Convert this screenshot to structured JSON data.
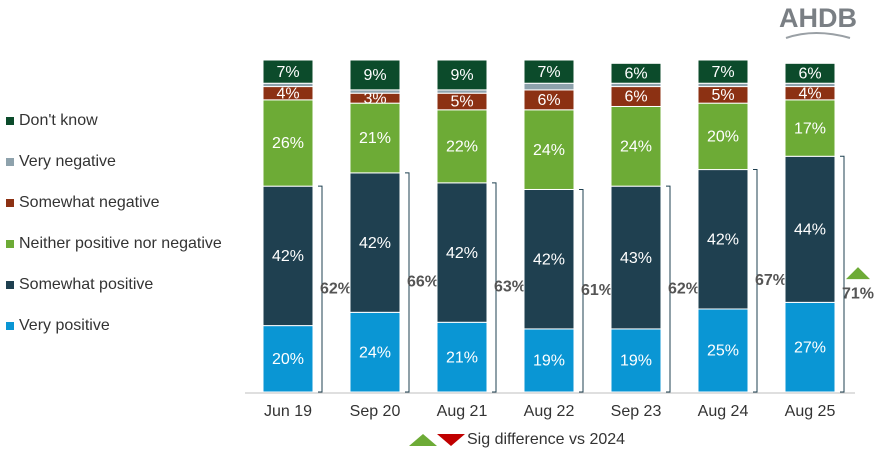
{
  "chart_data": {
    "type": "bar",
    "stacked": true,
    "logo": "AHDB",
    "categories": [
      "Jun 19",
      "Sep 20",
      "Aug 21",
      "Aug 22",
      "Sep 23",
      "Aug 24",
      "Aug 25"
    ],
    "series": [
      {
        "name": "Very positive",
        "color": "#0a96d4",
        "values": [
          20,
          24,
          21,
          19,
          19,
          25,
          27
        ],
        "value_labels": [
          "20%",
          "24%",
          "21%",
          "19%",
          "19%",
          "25%",
          "27%"
        ]
      },
      {
        "name": "Somewhat positive",
        "color": "#1f4050",
        "values": [
          42,
          42,
          42,
          42,
          43,
          42,
          44
        ],
        "value_labels": [
          "42%",
          "42%",
          "42%",
          "42%",
          "43%",
          "42%",
          "44%"
        ]
      },
      {
        "name": "Neither positive nor negative",
        "color": "#6dab36",
        "values": [
          26,
          21,
          22,
          24,
          24,
          20,
          17
        ],
        "value_labels": [
          "26%",
          "21%",
          "22%",
          "24%",
          "24%",
          "20%",
          "17%"
        ]
      },
      {
        "name": "Somewhat negative",
        "color": "#8c3113",
        "values": [
          4,
          3,
          5,
          6,
          6,
          5,
          4
        ],
        "value_labels": [
          "4%",
          "3%",
          "5%",
          "6%",
          "6%",
          "5%",
          "4%"
        ]
      },
      {
        "name": "Very negative",
        "color": "#8ea2ac",
        "values": [
          1,
          1,
          1,
          2,
          1,
          1,
          1
        ],
        "value_labels": [
          null,
          null,
          null,
          null,
          null,
          null,
          null
        ]
      },
      {
        "name": "Don't know",
        "color": "#0c4b2b",
        "values": [
          7,
          9,
          9,
          7,
          6,
          7,
          6
        ],
        "value_labels": [
          "7%",
          "9%",
          "9%",
          "7%",
          "6%",
          "7%",
          "6%"
        ]
      }
    ],
    "totals": {
      "values": [
        62,
        66,
        63,
        61,
        62,
        67,
        71
      ],
      "value_labels": [
        "62%",
        "66%",
        "63%",
        "61%",
        "62%",
        "67%",
        "71%"
      ],
      "significance": [
        null,
        null,
        null,
        null,
        null,
        null,
        "up"
      ]
    },
    "sig_legend": {
      "label": "Sig difference vs 2024",
      "up_color": "#6dab36",
      "down_color": "#c00000"
    }
  }
}
